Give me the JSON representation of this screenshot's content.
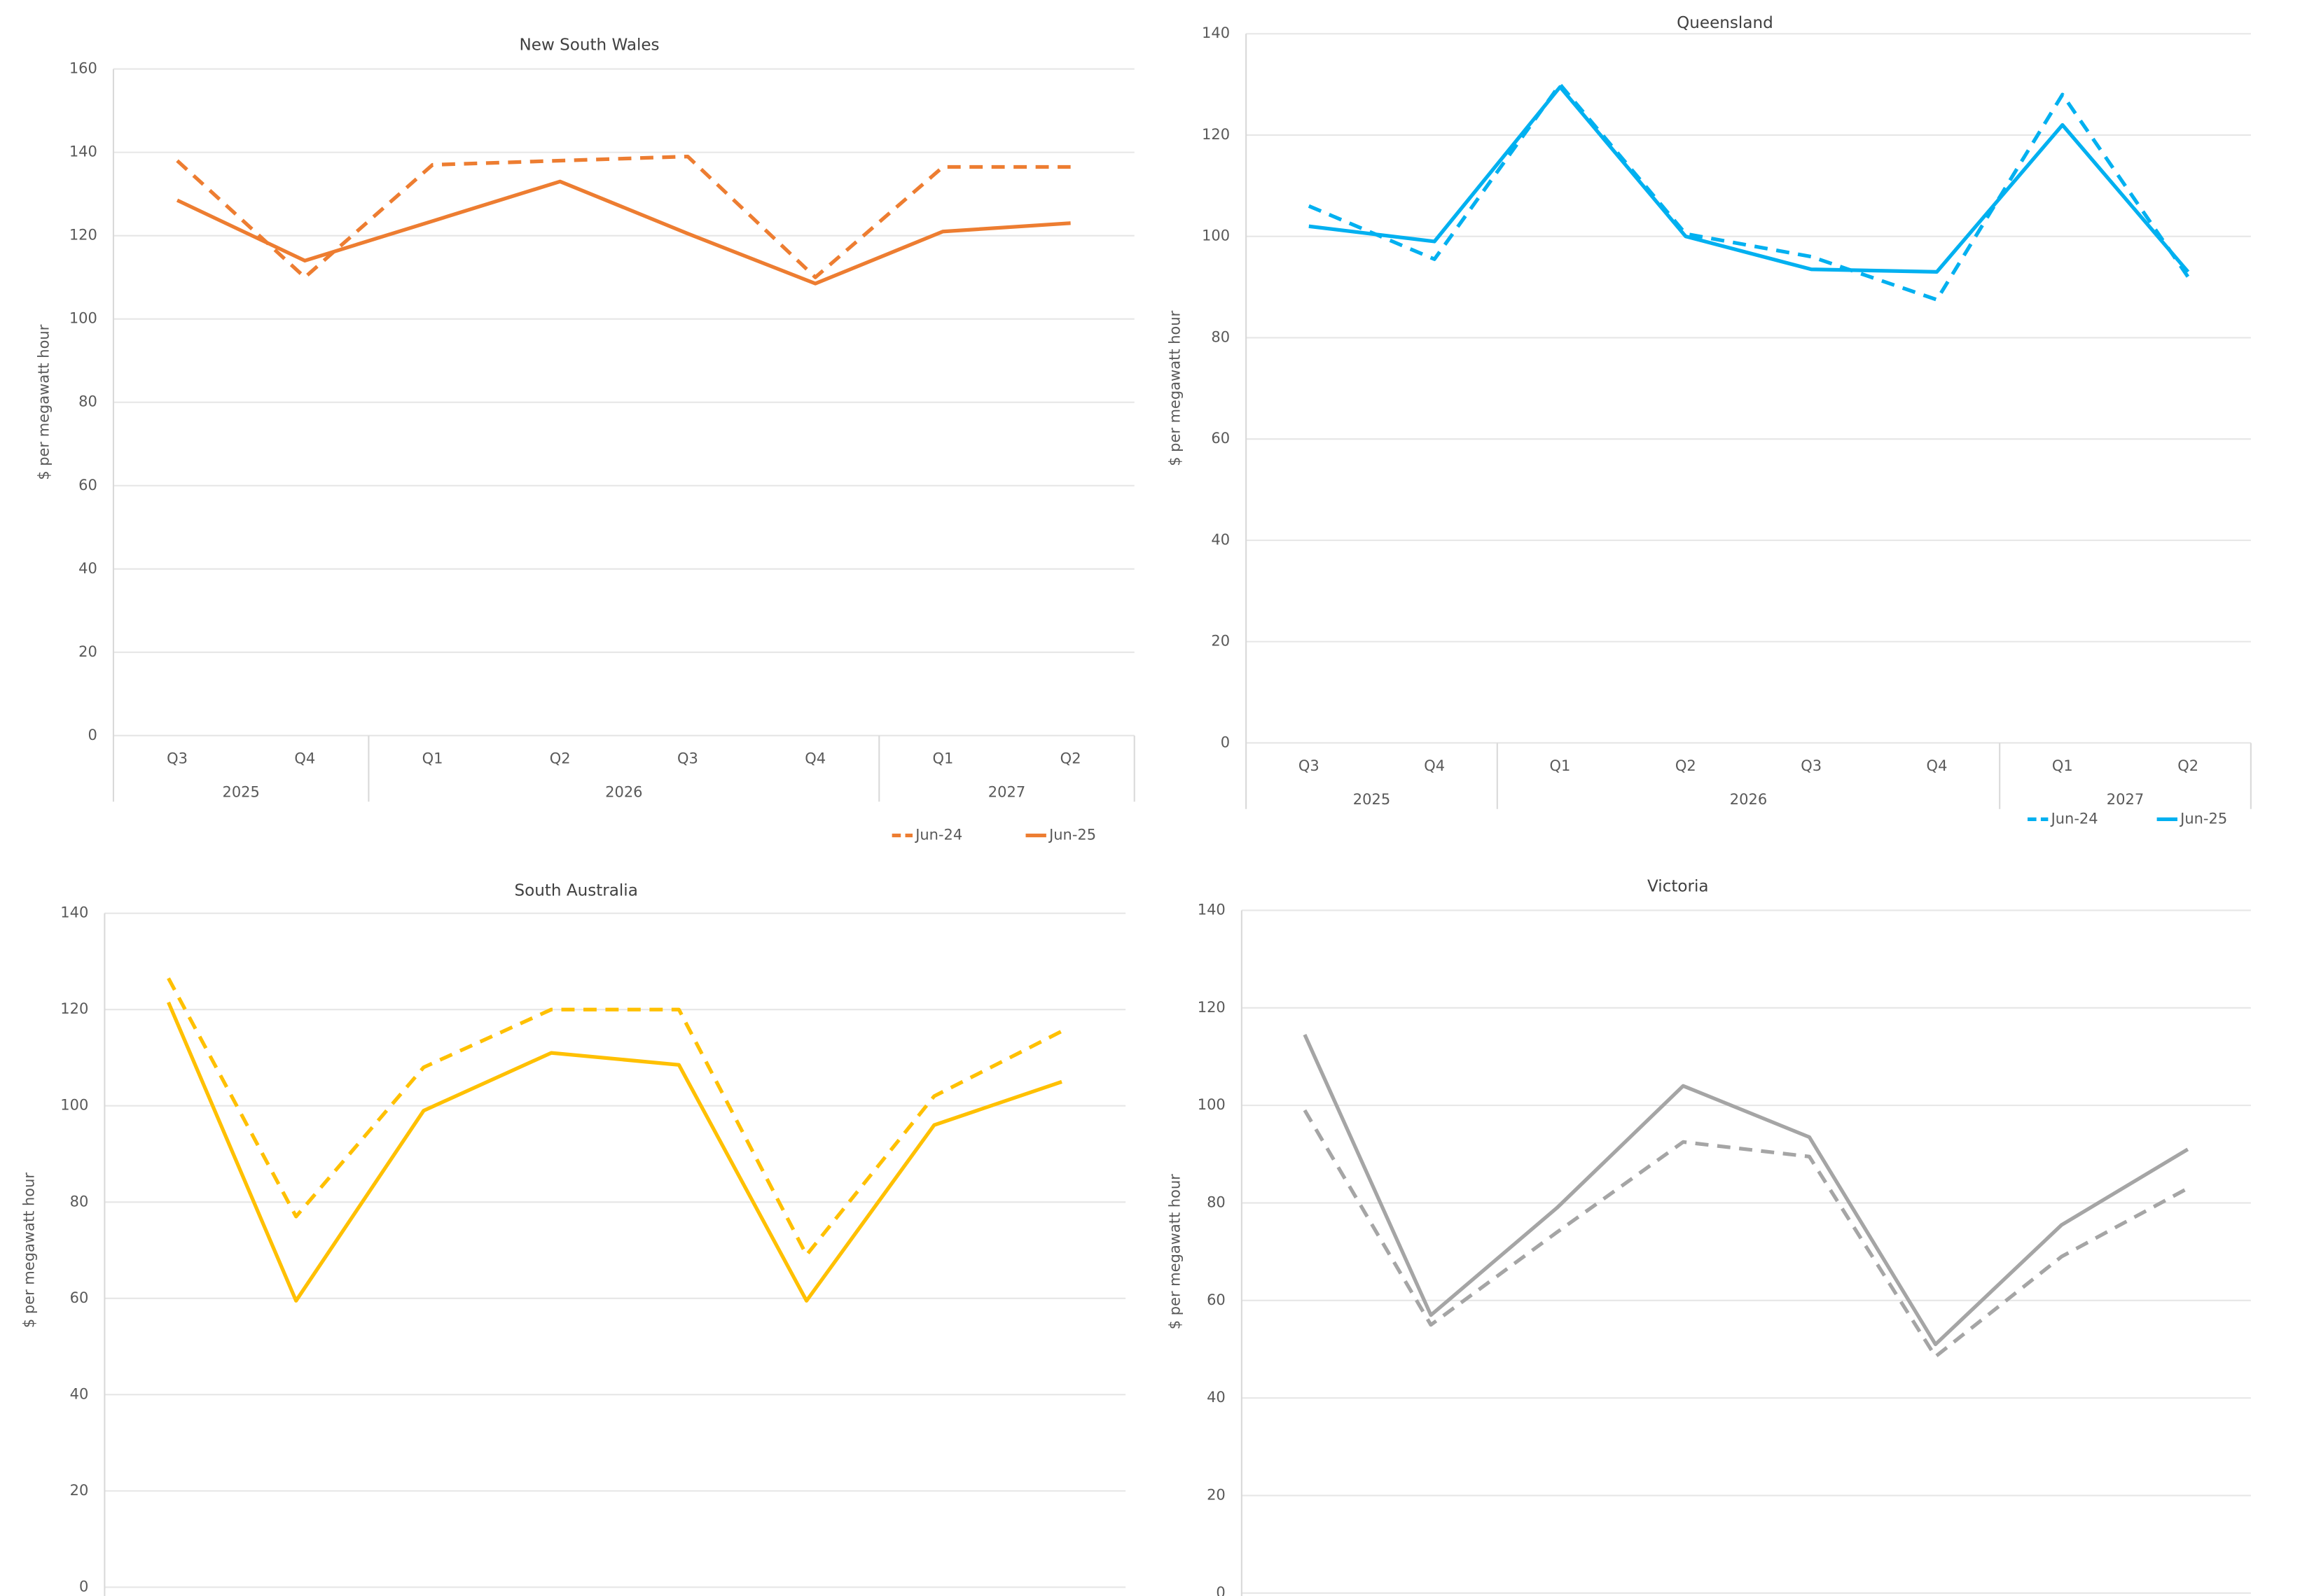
{
  "chart_data": [
    {
      "type": "line",
      "title": "New South Wales",
      "y_label": "$ per megawatt hour",
      "categories": [
        "Q3",
        "Q4",
        "Q1",
        "Q2",
        "Q3",
        "Q4",
        "Q1",
        "Q2"
      ],
      "x_groups": [
        {
          "label": "2025",
          "span": 2
        },
        {
          "label": "2026",
          "span": 4
        },
        {
          "label": "2027",
          "span": 2
        }
      ],
      "ylim": [
        0,
        160
      ],
      "yticks": [
        0,
        20,
        40,
        60,
        80,
        100,
        120,
        140,
        160
      ],
      "grid": true,
      "legend": "bottom-right",
      "series": [
        {
          "name": "Jun-24",
          "color": "#ED7D31",
          "dashed": true,
          "values": [
            138,
            110,
            137,
            138,
            139,
            110,
            136.5,
            136.5
          ]
        },
        {
          "name": "Jun-25",
          "color": "#ED7D31",
          "dashed": false,
          "values": [
            128.5,
            114,
            123.5,
            133,
            120.5,
            108.5,
            121,
            123
          ]
        }
      ]
    },
    {
      "type": "line",
      "title": "Queensland",
      "y_label": "$ per megawatt hour",
      "categories": [
        "Q3",
        "Q4",
        "Q1",
        "Q2",
        "Q3",
        "Q4",
        "Q1",
        "Q2"
      ],
      "x_groups": [
        {
          "label": "2025",
          "span": 2
        },
        {
          "label": "2026",
          "span": 4
        },
        {
          "label": "2027",
          "span": 2
        }
      ],
      "ylim": [
        0,
        140
      ],
      "yticks": [
        0,
        20,
        40,
        60,
        80,
        100,
        120,
        140
      ],
      "grid": true,
      "legend": "bottom-right",
      "series": [
        {
          "name": "Jun-24",
          "color": "#00B0F0",
          "dashed": true,
          "values": [
            106,
            95.5,
            130,
            100.5,
            96,
            87.5,
            128,
            92
          ]
        },
        {
          "name": "Jun-25",
          "color": "#00B0F0",
          "dashed": false,
          "values": [
            102,
            99,
            129.5,
            100,
            93.5,
            93,
            122,
            93
          ]
        }
      ]
    },
    {
      "type": "line",
      "title": "South Australia",
      "y_label": "$ per megawatt hour",
      "categories": [
        null,
        null,
        null,
        null,
        null,
        null,
        null,
        null
      ],
      "ylim": [
        0,
        140
      ],
      "yticks": [
        0,
        20,
        40,
        60,
        80,
        100,
        120,
        140
      ],
      "grid": true,
      "series": [
        {
          "color": "#FFC000",
          "dashed": true,
          "values": [
            126.5,
            77,
            108,
            120,
            120,
            69,
            102,
            115.5
          ]
        },
        {
          "color": "#FFC000",
          "dashed": false,
          "values": [
            121.5,
            59.5,
            99,
            111,
            108.5,
            59.5,
            96,
            105
          ]
        }
      ]
    },
    {
      "type": "line",
      "title": "Victoria",
      "y_label": "$ per megawatt hour",
      "categories": [
        null,
        null,
        null,
        null,
        null,
        null,
        null,
        null
      ],
      "ylim": [
        0,
        140
      ],
      "yticks": [
        0,
        20,
        40,
        60,
        80,
        100,
        120,
        140
      ],
      "grid": true,
      "series": [
        {
          "color": "#A5A5A5",
          "dashed": true,
          "values": [
            99,
            55,
            74,
            92.5,
            89.5,
            48.5,
            69,
            83
          ]
        },
        {
          "color": "#A5A5A5",
          "dashed": false,
          "values": [
            114.5,
            57,
            79,
            104,
            93.5,
            51,
            75.5,
            91
          ]
        }
      ]
    }
  ]
}
